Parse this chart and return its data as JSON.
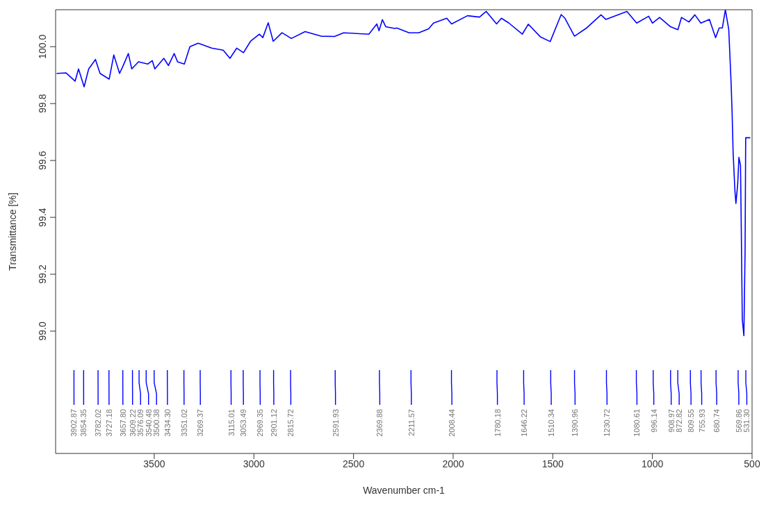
{
  "chart_data": {
    "type": "line",
    "xlabel": "Wavenumber cm-1",
    "ylabel": "Transmittance [%]",
    "xlim": [
      3995,
      500
    ],
    "xticks": [
      3500,
      3000,
      2500,
      2000,
      1500,
      1000,
      500
    ],
    "ylim": [
      98.57,
      100.13
    ],
    "yticks": [
      {
        "value": 99.0,
        "label": "99.0"
      },
      {
        "value": 99.2,
        "label": "99.2"
      },
      {
        "value": 99.4,
        "label": "99.4"
      },
      {
        "value": 99.6,
        "label": "99.6"
      },
      {
        "value": 99.8,
        "label": "99.8"
      },
      {
        "value": 100.0,
        "label": "100.0"
      }
    ],
    "grid": false,
    "legend": false,
    "marker": "none",
    "line_style": "solid",
    "series": [
      {
        "color": "#0000ff",
        "x": [
          3990,
          3943,
          3897,
          3880,
          3852,
          3829,
          3795,
          3772,
          3726,
          3703,
          3674,
          3658,
          3630,
          3613,
          3579,
          3532,
          3510,
          3497,
          3452,
          3429,
          3400,
          3383,
          3349,
          3321,
          3280,
          3269,
          3212,
          3154,
          3120,
          3086,
          3052,
          3017,
          2972,
          2955,
          2928,
          2903,
          2859,
          2812,
          2743,
          2663,
          2595,
          2550,
          2423,
          2383,
          2372,
          2355,
          2338,
          2293,
          2283,
          2221,
          2173,
          2123,
          2099,
          2032,
          2008,
          1928,
          1868,
          1834,
          1782,
          1758,
          1720,
          1653,
          1623,
          1563,
          1513,
          1458,
          1439,
          1391,
          1330,
          1258,
          1234,
          1128,
          1079,
          1019,
          1000,
          964,
          909,
          872,
          854,
          817,
          787,
          757,
          714,
          683,
          665,
          649,
          634,
          617,
          605,
          600,
          595,
          586,
          581,
          572,
          566,
          558,
          554,
          549,
          541,
          535,
          532,
          509
        ],
        "values": [
          99.906,
          99.908,
          99.879,
          99.922,
          99.859,
          99.922,
          99.955,
          99.906,
          99.886,
          99.971,
          99.906,
          99.93,
          99.976,
          99.922,
          99.947,
          99.939,
          99.951,
          99.922,
          99.959,
          99.934,
          99.976,
          99.947,
          99.939,
          100.0,
          100.012,
          100.01,
          99.995,
          99.988,
          99.959,
          99.995,
          99.979,
          100.019,
          100.044,
          100.032,
          100.084,
          100.019,
          100.049,
          100.029,
          100.053,
          100.037,
          100.036,
          100.049,
          100.044,
          100.08,
          100.056,
          100.095,
          100.07,
          100.064,
          100.066,
          100.049,
          100.049,
          100.063,
          100.083,
          100.1,
          100.08,
          100.109,
          100.104,
          100.124,
          100.08,
          100.1,
          100.083,
          100.044,
          100.079,
          100.035,
          100.018,
          100.113,
          100.1,
          100.037,
          100.066,
          100.112,
          100.096,
          100.124,
          100.083,
          100.107,
          100.083,
          100.103,
          100.07,
          100.06,
          100.103,
          100.087,
          100.112,
          100.083,
          100.096,
          100.032,
          100.066,
          100.066,
          100.13,
          100.061,
          99.87,
          99.765,
          99.627,
          99.493,
          99.449,
          99.518,
          99.611,
          99.583,
          99.357,
          99.041,
          98.984,
          99.284,
          99.68,
          99.68
        ]
      }
    ],
    "annotations": [
      {
        "text": "3902.87",
        "x": 3902.87
      },
      {
        "text": "3854.35",
        "x": 3854.35
      },
      {
        "text": "3782.02",
        "x": 3782.02
      },
      {
        "text": "3727.18",
        "x": 3727.18
      },
      {
        "text": "3657.80",
        "x": 3657.8
      },
      {
        "text": "3609.22",
        "x": 3609.22
      },
      {
        "text": "3576.09",
        "x": 3576.09
      },
      {
        "text": "3540.48",
        "x": 3540.48
      },
      {
        "text": "3500.38",
        "x": 3500.38
      },
      {
        "text": "3434.30",
        "x": 3434.3
      },
      {
        "text": "3351.02",
        "x": 3351.02
      },
      {
        "text": "3269.37",
        "x": 3269.37
      },
      {
        "text": "3115.01",
        "x": 3115.01
      },
      {
        "text": "3053.49",
        "x": 3053.49
      },
      {
        "text": "2969.35",
        "x": 2969.35
      },
      {
        "text": "2901.12",
        "x": 2901.12
      },
      {
        "text": "2815.72",
        "x": 2815.72
      },
      {
        "text": "2591.93",
        "x": 2591.93
      },
      {
        "text": "2369.88",
        "x": 2369.88
      },
      {
        "text": "2211.57",
        "x": 2211.57
      },
      {
        "text": "2008.44",
        "x": 2008.44
      },
      {
        "text": "1780.18",
        "x": 1780.18
      },
      {
        "text": "1646.22",
        "x": 1646.22
      },
      {
        "text": "1510.34",
        "x": 1510.34
      },
      {
        "text": "1390.96",
        "x": 1390.96
      },
      {
        "text": "1230.72",
        "x": 1230.72
      },
      {
        "text": "1080.61",
        "x": 1080.61
      },
      {
        "text": "996.14",
        "x": 996.14
      },
      {
        "text": "908.97",
        "x": 908.97
      },
      {
        "text": "872.82",
        "x": 872.82
      },
      {
        "text": "809.55",
        "x": 809.55
      },
      {
        "text": "755.93",
        "x": 755.93
      },
      {
        "text": "680.74",
        "x": 680.74
      },
      {
        "text": "569.86",
        "x": 569.86
      },
      {
        "text": "531.30",
        "x": 531.3
      }
    ]
  }
}
